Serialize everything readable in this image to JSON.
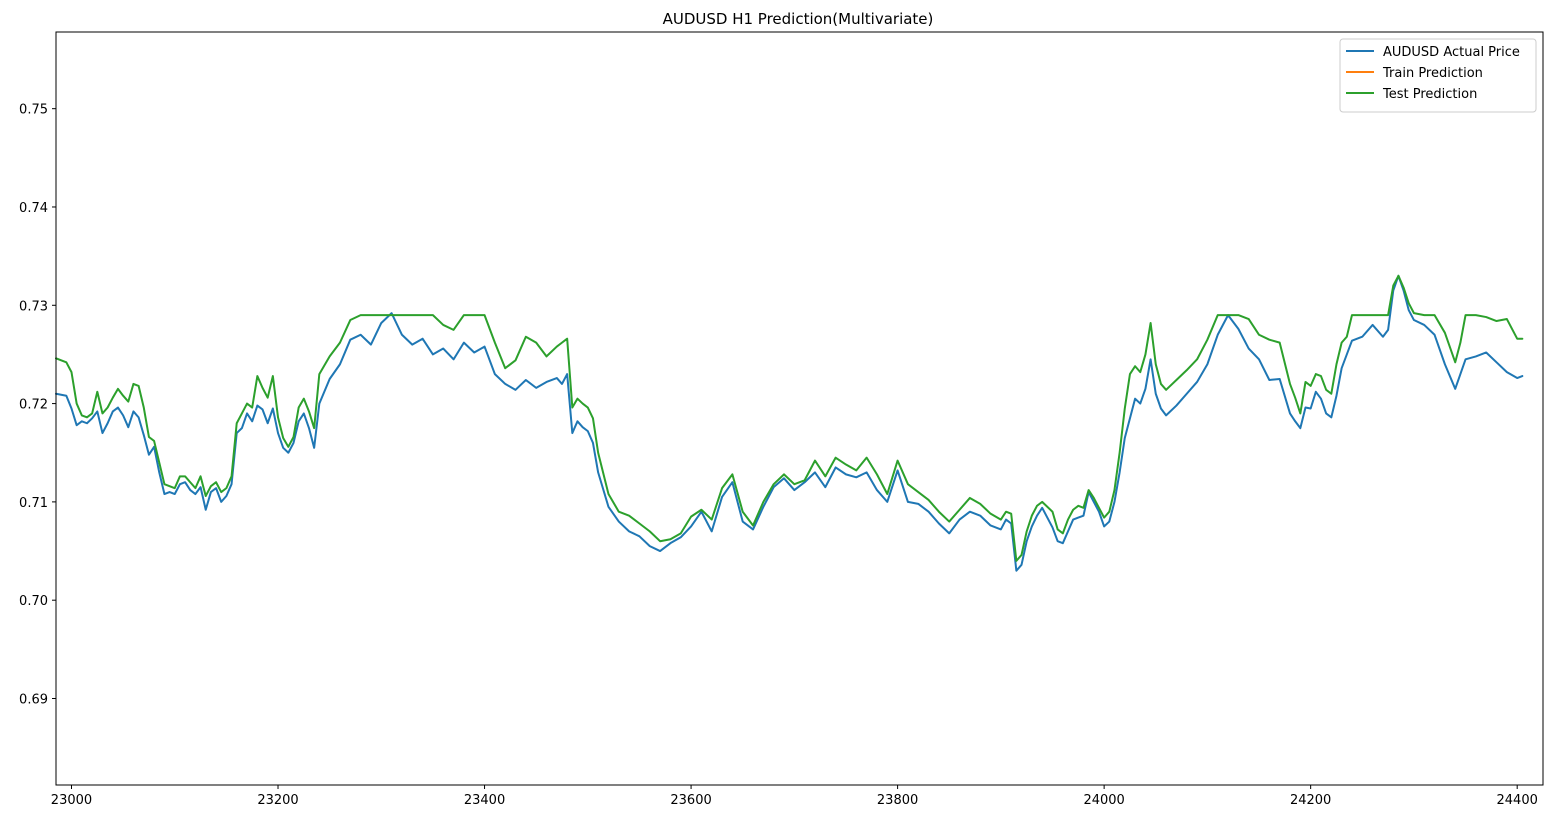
{
  "chart_data": {
    "type": "line",
    "title": "AUDUSD H1 Prediction(Multivariate)",
    "xlabel": "",
    "ylabel": "",
    "xlim": [
      22985,
      24425
    ],
    "ylim": [
      0.6812,
      0.7578
    ],
    "grid": false,
    "legend_position": "top-right",
    "x_ticks": [
      {
        "value": 23000,
        "label": "23000"
      },
      {
        "value": 23200,
        "label": "23200"
      },
      {
        "value": 23400,
        "label": "23400"
      },
      {
        "value": 23600,
        "label": "23600"
      },
      {
        "value": 23800,
        "label": "23800"
      },
      {
        "value": 24000,
        "label": "24000"
      },
      {
        "value": 24200,
        "label": "24200"
      },
      {
        "value": 24400,
        "label": "24400"
      }
    ],
    "y_ticks": [
      {
        "value": 0.69,
        "label": "0.69"
      },
      {
        "value": 0.7,
        "label": "0.70"
      },
      {
        "value": 0.71,
        "label": "0.71"
      },
      {
        "value": 0.72,
        "label": "0.72"
      },
      {
        "value": 0.73,
        "label": "0.73"
      },
      {
        "value": 0.74,
        "label": "0.74"
      },
      {
        "value": 0.75,
        "label": "0.75"
      }
    ],
    "series": [
      {
        "name": "AUDUSD Actual Price",
        "color": "#1f77b4",
        "x": [
          22985,
          22995,
          23000,
          23005,
          23010,
          23015,
          23020,
          23025,
          23030,
          23035,
          23040,
          23045,
          23050,
          23055,
          23060,
          23065,
          23070,
          23075,
          23080,
          23085,
          23090,
          23095,
          23100,
          23105,
          23110,
          23115,
          23120,
          23125,
          23130,
          23135,
          23140,
          23145,
          23150,
          23155,
          23160,
          23165,
          23170,
          23175,
          23180,
          23185,
          23190,
          23195,
          23200,
          23205,
          23210,
          23215,
          23220,
          23225,
          23230,
          23235,
          23240,
          23250,
          23260,
          23270,
          23280,
          23290,
          23300,
          23310,
          23320,
          23330,
          23340,
          23350,
          23360,
          23370,
          23380,
          23390,
          23400,
          23410,
          23420,
          23430,
          23440,
          23450,
          23460,
          23470,
          23475,
          23480,
          23485,
          23490,
          23495,
          23500,
          23505,
          23510,
          23520,
          23530,
          23540,
          23550,
          23560,
          23570,
          23580,
          23590,
          23600,
          23610,
          23620,
          23630,
          23640,
          23650,
          23660,
          23670,
          23680,
          23690,
          23700,
          23710,
          23720,
          23730,
          23740,
          23750,
          23760,
          23770,
          23780,
          23790,
          23800,
          23810,
          23820,
          23830,
          23840,
          23850,
          23860,
          23870,
          23880,
          23890,
          23900,
          23905,
          23910,
          23915,
          23920,
          23925,
          23930,
          23935,
          23940,
          23950,
          23955,
          23960,
          23965,
          23970,
          23975,
          23980,
          23985,
          23990,
          23995,
          24000,
          24005,
          24010,
          24015,
          24020,
          24025,
          24030,
          24035,
          24040,
          24045,
          24050,
          24055,
          24060,
          24070,
          24080,
          24090,
          24100,
          24110,
          24120,
          24130,
          24140,
          24150,
          24160,
          24170,
          24180,
          24185,
          24190,
          24195,
          24200,
          24205,
          24210,
          24215,
          24220,
          24225,
          24230,
          24235,
          24240,
          24250,
          24260,
          24270,
          24275,
          24280,
          24285,
          24290,
          24295,
          24300,
          24310,
          24320,
          24330,
          24340,
          24345,
          24350,
          24360,
          24370,
          24380,
          24390,
          24400,
          24405
        ],
        "y": [
          0.721,
          0.7208,
          0.7195,
          0.7178,
          0.7182,
          0.718,
          0.7185,
          0.7192,
          0.717,
          0.718,
          0.7192,
          0.7196,
          0.7188,
          0.7176,
          0.7192,
          0.7186,
          0.7168,
          0.7148,
          0.7156,
          0.713,
          0.7108,
          0.711,
          0.7108,
          0.7118,
          0.712,
          0.7112,
          0.7108,
          0.7115,
          0.7092,
          0.711,
          0.7114,
          0.71,
          0.7106,
          0.7118,
          0.717,
          0.7175,
          0.719,
          0.7182,
          0.7198,
          0.7194,
          0.718,
          0.7195,
          0.717,
          0.7155,
          0.715,
          0.716,
          0.7182,
          0.719,
          0.7175,
          0.7155,
          0.72,
          0.7225,
          0.724,
          0.7265,
          0.727,
          0.726,
          0.7282,
          0.7292,
          0.727,
          0.726,
          0.7266,
          0.725,
          0.7256,
          0.7245,
          0.7262,
          0.7252,
          0.7258,
          0.723,
          0.722,
          0.7214,
          0.7224,
          0.7216,
          0.7222,
          0.7226,
          0.722,
          0.723,
          0.717,
          0.7182,
          0.7176,
          0.7172,
          0.716,
          0.713,
          0.7095,
          0.708,
          0.707,
          0.7065,
          0.7055,
          0.705,
          0.7058,
          0.7064,
          0.7075,
          0.709,
          0.707,
          0.7105,
          0.712,
          0.708,
          0.7072,
          0.7095,
          0.7115,
          0.7124,
          0.7112,
          0.712,
          0.713,
          0.7115,
          0.7135,
          0.7128,
          0.7125,
          0.713,
          0.7112,
          0.71,
          0.7132,
          0.71,
          0.7098,
          0.709,
          0.7078,
          0.7068,
          0.7082,
          0.709,
          0.7086,
          0.7076,
          0.7072,
          0.7082,
          0.7078,
          0.703,
          0.7036,
          0.706,
          0.7075,
          0.7086,
          0.7094,
          0.7074,
          0.706,
          0.7058,
          0.707,
          0.7082,
          0.7084,
          0.7086,
          0.711,
          0.71,
          0.709,
          0.7075,
          0.708,
          0.71,
          0.713,
          0.7165,
          0.7185,
          0.7205,
          0.72,
          0.7215,
          0.7245,
          0.721,
          0.7195,
          0.7188,
          0.7198,
          0.721,
          0.7222,
          0.724,
          0.727,
          0.729,
          0.7276,
          0.7256,
          0.7245,
          0.7224,
          0.7225,
          0.719,
          0.7182,
          0.7175,
          0.7196,
          0.7195,
          0.7212,
          0.7205,
          0.719,
          0.7186,
          0.7208,
          0.7236,
          0.725,
          0.7264,
          0.7268,
          0.728,
          0.7268,
          0.7275,
          0.7315,
          0.733,
          0.7315,
          0.7295,
          0.7285,
          0.728,
          0.727,
          0.724,
          0.7215,
          0.723,
          0.7245,
          0.7248,
          0.7252,
          0.7242,
          0.7232,
          0.7226,
          0.7228
        ]
      },
      {
        "name": "Train Prediction",
        "color": "#ff7f0e",
        "x": [],
        "y": []
      },
      {
        "name": "Test Prediction",
        "color": "#2ca02c",
        "x": [
          22985,
          22995,
          23000,
          23005,
          23010,
          23015,
          23020,
          23025,
          23030,
          23035,
          23040,
          23045,
          23050,
          23055,
          23060,
          23065,
          23070,
          23075,
          23080,
          23085,
          23090,
          23095,
          23100,
          23105,
          23110,
          23115,
          23120,
          23125,
          23130,
          23135,
          23140,
          23145,
          23150,
          23155,
          23160,
          23165,
          23170,
          23175,
          23180,
          23185,
          23190,
          23195,
          23200,
          23205,
          23210,
          23215,
          23220,
          23225,
          23230,
          23235,
          23240,
          23250,
          23260,
          23270,
          23280,
          23290,
          23300,
          23310,
          23320,
          23330,
          23340,
          23350,
          23360,
          23370,
          23380,
          23390,
          23400,
          23410,
          23420,
          23430,
          23440,
          23450,
          23460,
          23470,
          23475,
          23480,
          23485,
          23490,
          23495,
          23500,
          23505,
          23510,
          23520,
          23530,
          23540,
          23550,
          23560,
          23570,
          23580,
          23590,
          23600,
          23610,
          23620,
          23630,
          23640,
          23650,
          23660,
          23670,
          23680,
          23690,
          23700,
          23710,
          23720,
          23730,
          23740,
          23750,
          23760,
          23770,
          23780,
          23790,
          23800,
          23810,
          23820,
          23830,
          23840,
          23850,
          23860,
          23870,
          23880,
          23890,
          23900,
          23905,
          23910,
          23915,
          23920,
          23925,
          23930,
          23935,
          23940,
          23950,
          23955,
          23960,
          23965,
          23970,
          23975,
          23980,
          23985,
          23990,
          23995,
          24000,
          24005,
          24010,
          24015,
          24020,
          24025,
          24030,
          24035,
          24040,
          24045,
          24050,
          24055,
          24060,
          24070,
          24080,
          24090,
          24100,
          24110,
          24120,
          24130,
          24140,
          24150,
          24160,
          24170,
          24180,
          24185,
          24190,
          24195,
          24200,
          24205,
          24210,
          24215,
          24220,
          24225,
          24230,
          24235,
          24240,
          24250,
          24260,
          24270,
          24275,
          24280,
          24285,
          24290,
          24295,
          24300,
          24310,
          24320,
          24330,
          24340,
          24345,
          24350,
          24360,
          24370,
          24380,
          24390,
          24400,
          24405
        ],
        "y": [
          0.7246,
          0.7242,
          0.7232,
          0.72,
          0.7188,
          0.7186,
          0.719,
          0.7212,
          0.719,
          0.7196,
          0.7206,
          0.7215,
          0.7208,
          0.7202,
          0.722,
          0.7218,
          0.7196,
          0.7166,
          0.7162,
          0.714,
          0.7118,
          0.7116,
          0.7114,
          0.7126,
          0.7126,
          0.712,
          0.7114,
          0.7126,
          0.7106,
          0.7116,
          0.712,
          0.711,
          0.7114,
          0.7126,
          0.718,
          0.719,
          0.72,
          0.7196,
          0.7228,
          0.7216,
          0.7206,
          0.7228,
          0.7186,
          0.7165,
          0.7156,
          0.7166,
          0.7196,
          0.7205,
          0.7192,
          0.7175,
          0.723,
          0.7248,
          0.7262,
          0.7285,
          0.729,
          0.729,
          0.729,
          0.729,
          0.729,
          0.729,
          0.729,
          0.729,
          0.728,
          0.7275,
          0.729,
          0.729,
          0.729,
          0.7262,
          0.7236,
          0.7244,
          0.7268,
          0.7262,
          0.7248,
          0.7258,
          0.7262,
          0.7266,
          0.7196,
          0.7205,
          0.72,
          0.7196,
          0.7185,
          0.715,
          0.7108,
          0.709,
          0.7086,
          0.7078,
          0.707,
          0.706,
          0.7062,
          0.7068,
          0.7085,
          0.7092,
          0.7082,
          0.7114,
          0.7128,
          0.709,
          0.7076,
          0.71,
          0.7118,
          0.7128,
          0.7118,
          0.7122,
          0.7142,
          0.7126,
          0.7145,
          0.7138,
          0.7132,
          0.7145,
          0.7128,
          0.7108,
          0.7142,
          0.7118,
          0.711,
          0.7102,
          0.709,
          0.708,
          0.7092,
          0.7104,
          0.7098,
          0.7088,
          0.7082,
          0.709,
          0.7088,
          0.704,
          0.7046,
          0.707,
          0.7086,
          0.7096,
          0.71,
          0.709,
          0.7072,
          0.7068,
          0.7082,
          0.7092,
          0.7096,
          0.7094,
          0.7112,
          0.7104,
          0.7094,
          0.7084,
          0.709,
          0.7112,
          0.715,
          0.7195,
          0.723,
          0.7238,
          0.7232,
          0.725,
          0.7282,
          0.724,
          0.722,
          0.7214,
          0.7224,
          0.7234,
          0.7245,
          0.7265,
          0.729,
          0.729,
          0.729,
          0.7286,
          0.727,
          0.7265,
          0.7262,
          0.722,
          0.7206,
          0.719,
          0.7222,
          0.7218,
          0.723,
          0.7228,
          0.7214,
          0.721,
          0.724,
          0.7262,
          0.7268,
          0.729,
          0.729,
          0.729,
          0.729,
          0.729,
          0.732,
          0.733,
          0.7318,
          0.7302,
          0.7292,
          0.729,
          0.729,
          0.7272,
          0.7242,
          0.7262,
          0.729,
          0.729,
          0.7288,
          0.7284,
          0.7286,
          0.7266,
          0.7266
        ]
      }
    ]
  }
}
